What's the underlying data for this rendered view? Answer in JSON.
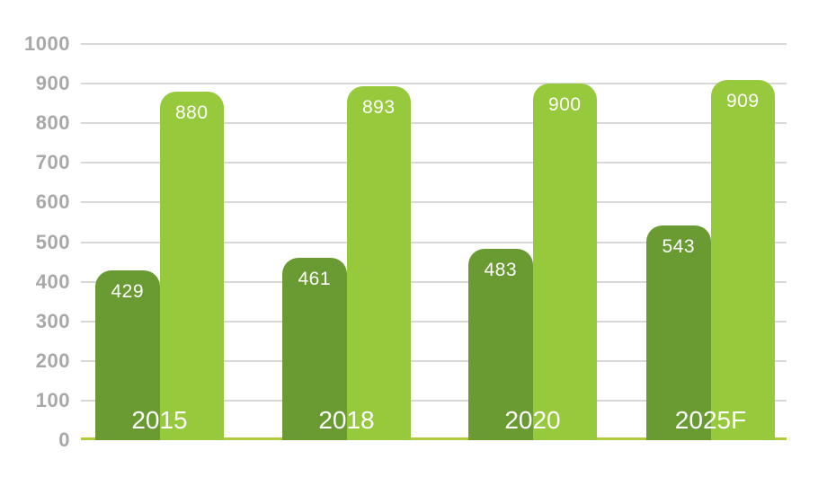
{
  "chart_data": {
    "type": "bar",
    "categories": [
      "2015",
      "2018",
      "2020",
      "2025F"
    ],
    "series": [
      {
        "name": "dark-green-series",
        "color": "#6A9B33",
        "values": [
          429,
          461,
          483,
          543
        ]
      },
      {
        "name": "light-green-series",
        "color": "#97C93C",
        "values": [
          880,
          893,
          900,
          909
        ]
      }
    ],
    "value_labels_shown": true,
    "value_label_color": "#FFFFFF",
    "category_label_color": "#FFFFFF",
    "ylim": [
      0,
      1000
    ],
    "ytick_step": 100,
    "yticks": [
      "0",
      "100",
      "200",
      "300",
      "400",
      "500",
      "600",
      "700",
      "800",
      "900",
      "1000"
    ],
    "ytick_color": "#A8A8A8",
    "grid": true,
    "gridline_color": "#D8D8D8",
    "baseline_color": "#AFCB3C",
    "background_color": "#FFFFFF",
    "legend_position": "none"
  }
}
